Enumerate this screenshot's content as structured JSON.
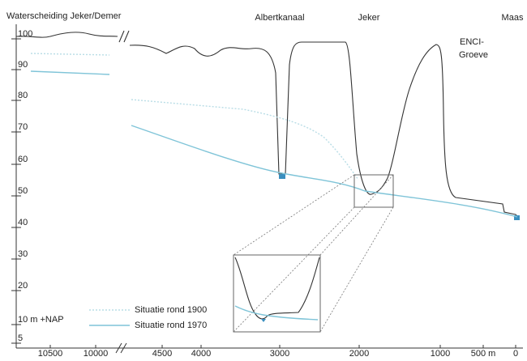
{
  "labels": {
    "top_left": "Waterscheiding Jeker/Demer",
    "albertkanaal": "Albertkanaal",
    "jeker": "Jeker",
    "maas": "Maas",
    "enci_1": "ENCI-",
    "enci_2": "Groeve"
  },
  "y_axis": [
    "100",
    "90",
    "80",
    "70",
    "60",
    "50",
    "40",
    "30",
    "20",
    "10 m +NAP",
    "5"
  ],
  "x_axis": [
    "10500",
    "10000",
    "4500",
    "4000",
    "3000",
    "2000",
    "1000",
    "500 m",
    "0"
  ],
  "legend": [
    "Situatie rond 1900",
    "Situatie rond 1970"
  ]
}
